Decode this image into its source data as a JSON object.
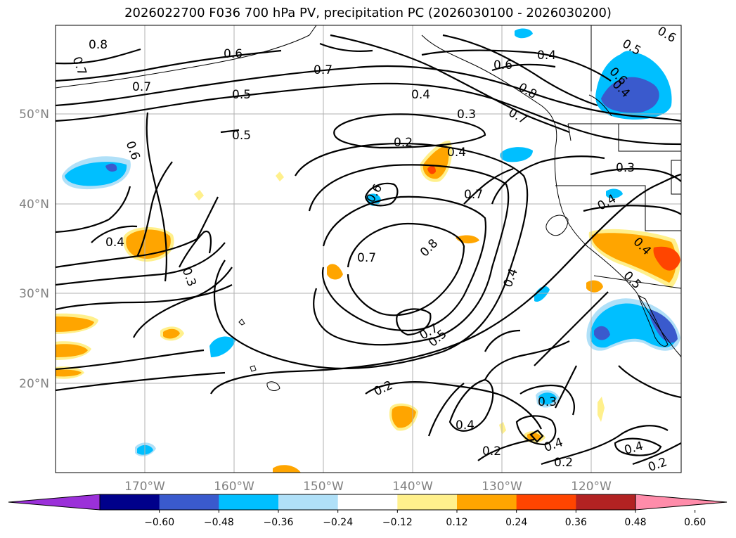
{
  "title": "2026022700 F036 700 hPa PV, precipitation PC (2026030100 - 2026030200)",
  "axes": {
    "lat_labels": [
      "50°N",
      "40°N",
      "30°N",
      "20°N"
    ],
    "lon_labels": [
      "170°W",
      "160°W",
      "150°W",
      "140°W",
      "130°W",
      "120°W"
    ]
  },
  "colorbar": {
    "colors": [
      "#9b30d9",
      "#00008b",
      "#3a5acd",
      "#00bfff",
      "#b0e0f8",
      "#ffffff",
      "#fff08c",
      "#ffa500",
      "#ff4500",
      "#b22222",
      "#ff8caa"
    ],
    "tick_labels": [
      "−0.60",
      "−0.48",
      "−0.36",
      "−0.24",
      "−0.12",
      "0.12",
      "0.24",
      "0.36",
      "0.48",
      "0.60"
    ]
  },
  "contour_labels": [
    "0.8",
    "0.7",
    "0.6",
    "0.7",
    "0.7",
    "0.5",
    "0.5",
    "0.6",
    "0.4",
    "0.3",
    "0.4",
    "0.2",
    "0.4",
    "0.6",
    "0.7",
    "0.7",
    "0.8",
    "0.7",
    "0.5",
    "0.2",
    "0.3",
    "0.4",
    "0.2",
    "0.3",
    "0.4",
    "0.2",
    "0.4",
    "0.2",
    "0.6",
    "0.4",
    "0.8",
    "0.7",
    "0.4",
    "0.6",
    "0.5",
    "0.6",
    "0.4",
    "0.3",
    "0.4",
    "0.4",
    "0.5"
  ],
  "map": {
    "extent_lon": [
      -180,
      -110
    ],
    "extent_lat": [
      10,
      60
    ],
    "contour_field": "700 hPa PV",
    "shaded_field": "precipitation PC"
  }
}
